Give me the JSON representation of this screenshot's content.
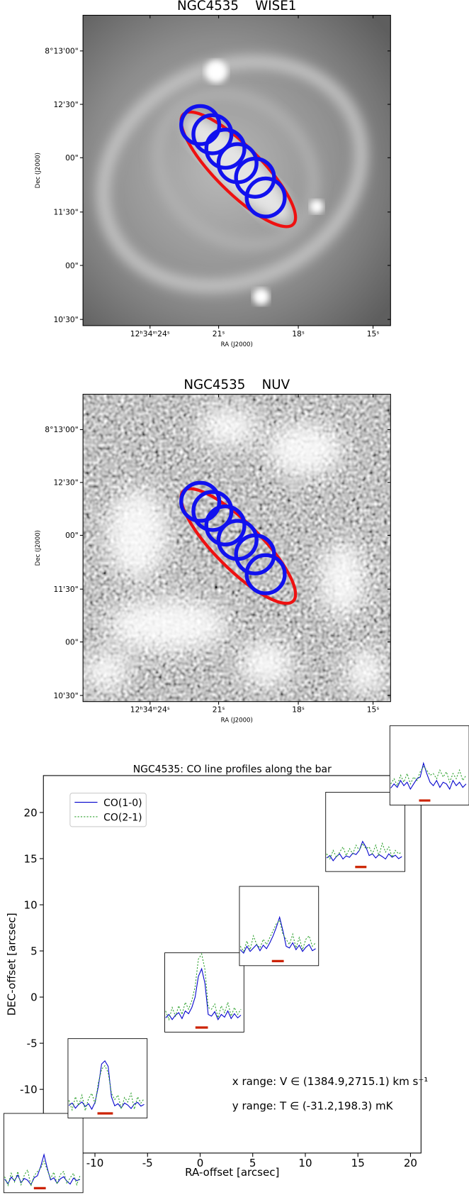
{
  "chart_data": [
    {
      "type": "image",
      "title": "NGC4535    WISE1",
      "xlabel": "RA (J2000)",
      "ylabel": "Dec (J2000)",
      "xtick_labels": [
        "12ʰ34ᵐ24ˢ",
        "21ˢ",
        "18ˢ",
        "15ˢ"
      ],
      "ytick_labels": [
        "8°13'00\"",
        "12'30\"",
        "00\"",
        "11'30\"",
        "00\"",
        "10'30\""
      ]
    },
    {
      "type": "image",
      "title": "NGC4535    NUV",
      "xlabel": "RA (J2000)",
      "ylabel": "Dec (J2000)",
      "xtick_labels": [
        "12ʰ34ᵐ24ˢ",
        "21ˢ",
        "18ˢ",
        "15ˢ"
      ],
      "ytick_labels": [
        "8°13'00\"",
        "12'30\"",
        "00\"",
        "11'30\"",
        "00\"",
        "10'30\""
      ]
    },
    {
      "type": "profiles",
      "title": "NGC4535: CO line profiles along the bar",
      "xlabel": "RA-offset [arcsec]",
      "ylabel": "DEC-offset [arcsec]",
      "xlim": [
        -14.9,
        21.0
      ],
      "ylim": [
        -16.9,
        24.0
      ],
      "xticks": [
        -10,
        -5,
        0,
        5,
        10,
        15,
        20
      ],
      "yticks": [
        -10,
        -5,
        0,
        5,
        10,
        15,
        20
      ],
      "legend": "upper left",
      "series": [
        {
          "name": "CO(1-0)",
          "color": "#0000cc"
        },
        {
          "name": "CO(2-1)",
          "color": "#2ca02c"
        }
      ],
      "window_color": "#cc2200",
      "annotations": [
        "x range: V ∈ (1384.9,2715.1) km s⁻¹",
        "y range: T ∈ (-31.2,198.3) mK"
      ],
      "inset_xlim": [
        1384.9,
        2715.1
      ],
      "inset_ylim": [
        -31.2,
        198.3
      ],
      "velocities": [
        1400,
        1455,
        1510,
        1565,
        1620,
        1675,
        1730,
        1785,
        1840,
        1895,
        1950,
        2005,
        2060,
        2115,
        2170,
        2225,
        2280,
        2335,
        2390,
        2445,
        2500,
        2555,
        2610,
        2665
      ],
      "insets": [
        {
          "ra": -14.9,
          "dec": -16.9,
          "window": [
            1890,
            2090
          ],
          "profiles": [
            [
              8,
              -5,
              14,
              3,
              20,
              -2,
              10,
              5,
              -8,
              12,
              18,
              45,
              79,
              40,
              6,
              12,
              -4,
              9,
              15,
              2,
              -6,
              11,
              4,
              7
            ],
            [
              15,
              -10,
              25,
              0,
              30,
              -8,
              20,
              35,
              -12,
              18,
              30,
              40,
              60,
              35,
              10,
              28,
              -6,
              22,
              30,
              -5,
              12,
              25,
              -8,
              18
            ]
          ]
        },
        {
          "ra": -8.8,
          "dec": -8.8,
          "window": [
            1880,
            2140
          ],
          "profiles": [
            [
              5,
              12,
              -3,
              8,
              15,
              2,
              10,
              -6,
              14,
              60,
              125,
              134,
              118,
              30,
              4,
              10,
              -2,
              12,
              6,
              -4,
              9,
              14,
              3,
              8
            ],
            [
              20,
              -8,
              30,
              5,
              35,
              -10,
              25,
              40,
              10,
              70,
              110,
              120,
              100,
              40,
              22,
              35,
              -5,
              28,
              15,
              40,
              -6,
              30,
              12,
              25
            ]
          ]
        },
        {
          "ra": 0.4,
          "dec": 0.5,
          "window": [
            1900,
            2110
          ],
          "profiles": [
            [
              10,
              20,
              5,
              18,
              25,
              8,
              30,
              22,
              40,
              70,
              130,
              152,
              110,
              20,
              15,
              28,
              5,
              20,
              12,
              30,
              8,
              22,
              10,
              18
            ],
            [
              30,
              5,
              40,
              15,
              45,
              20,
              55,
              35,
              60,
              100,
              180,
              195,
              150,
              40,
              35,
              50,
              10,
              45,
              25,
              55,
              15,
              40,
              20,
              35
            ]
          ]
        },
        {
          "ra": 7.5,
          "dec": 7.7,
          "window": [
            1930,
            2130
          ],
          "profiles": [
            [
              15,
              5,
              25,
              10,
              20,
              30,
              12,
              28,
              18,
              35,
              55,
              80,
              109,
              70,
              25,
              20,
              35,
              15,
              28,
              10,
              22,
              30,
              12,
              18
            ],
            [
              25,
              10,
              40,
              15,
              55,
              30,
              20,
              45,
              30,
              50,
              70,
              90,
              100,
              60,
              45,
              30,
              60,
              20,
              50,
              15,
              45,
              55,
              25,
              35
            ]
          ]
        },
        {
          "ra": 15.7,
          "dec": 17.9,
          "window": [
            1880,
            2070
          ],
          "profiles": [
            [
              8,
              15,
              0,
              12,
              20,
              5,
              14,
              10,
              22,
              18,
              30,
              56,
              40,
              15,
              20,
              8,
              18,
              12,
              5,
              20,
              10,
              16,
              6,
              12
            ],
            [
              20,
              5,
              30,
              10,
              25,
              40,
              15,
              35,
              20,
              45,
              30,
              50,
              35,
              40,
              20,
              45,
              15,
              50,
              25,
              40,
              10,
              30,
              20,
              25
            ]
          ]
        },
        {
          "ra": 21.8,
          "dec": 25.1,
          "window": [
            1875,
            2065
          ],
          "profiles": [
            [
              18,
              30,
              20,
              40,
              25,
              35,
              15,
              30,
              45,
              50,
              90,
              60,
              35,
              25,
              40,
              20,
              35,
              30,
              15,
              40,
              25,
              35,
              20,
              30
            ],
            [
              30,
              45,
              25,
              55,
              35,
              60,
              30,
              50,
              40,
              65,
              80,
              70,
              55,
              60,
              45,
              70,
              50,
              65,
              35,
              60,
              45,
              70,
              40,
              55
            ]
          ]
        }
      ]
    }
  ]
}
